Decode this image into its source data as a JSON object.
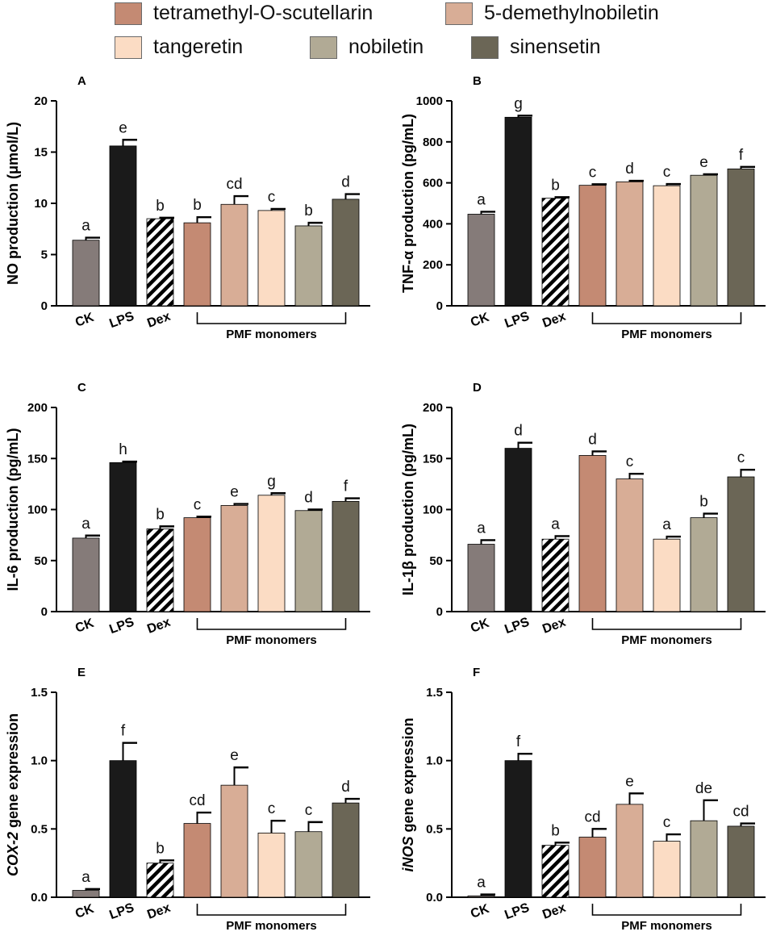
{
  "legend": [
    {
      "label": "tetramethyl-O-scutellarin",
      "color": "#c48a73"
    },
    {
      "label": "5-demethylnobiletin",
      "color": "#d8ad96"
    },
    {
      "label": "tangeretin",
      "color": "#fbdcc4"
    },
    {
      "label": "nobiletin",
      "color": "#b1aa95"
    },
    {
      "label": "sinensetin",
      "color": "#6b6656"
    }
  ],
  "colors": {
    "CK": "#857b79",
    "LPS": "#1a1a1a",
    "Dex": "hatch",
    "tetramethyl-O-scutellarin": "#c48a73",
    "5-demethylnobiletin": "#d8ad96",
    "tangeretin": "#fbdcc4",
    "nobiletin": "#b1aa95",
    "sinensetin": "#6b6656"
  },
  "chart_data": [
    {
      "panel": "A",
      "type": "bar",
      "categories": [
        "CK",
        "LPS",
        "Dex",
        "tetramethyl-O-scutellarin",
        "5-demethylnobiletin",
        "tangeretin",
        "nobiletin",
        "sinensetin"
      ],
      "tick_labels": [
        "CK",
        "LPS",
        "Dex"
      ],
      "group_label": "PMF monomers",
      "ylabel": "NO production (μmol/L)",
      "ylim": [
        0,
        20
      ],
      "yticks": [
        0,
        5,
        10,
        15,
        20
      ],
      "values": [
        6.4,
        15.6,
        8.5,
        8.1,
        9.9,
        9.3,
        7.8,
        10.4
      ],
      "errors": [
        0.25,
        0.6,
        0.1,
        0.55,
        0.8,
        0.15,
        0.3,
        0.5
      ],
      "letters": [
        "a",
        "e",
        "b",
        "b",
        "cd",
        "c",
        "b",
        "d"
      ]
    },
    {
      "panel": "B",
      "type": "bar",
      "categories": [
        "CK",
        "LPS",
        "Dex",
        "tetramethyl-O-scutellarin",
        "5-demethylnobiletin",
        "tangeretin",
        "nobiletin",
        "sinensetin"
      ],
      "tick_labels": [
        "CK",
        "LPS",
        "Dex"
      ],
      "group_label": "PMF monomers",
      "ylabel": "TNF-α production (pg/mL)",
      "ylim": [
        0,
        1000
      ],
      "yticks": [
        0,
        200,
        400,
        600,
        800,
        1000
      ],
      "values": [
        447,
        920,
        525,
        588,
        605,
        586,
        637,
        668
      ],
      "errors": [
        12,
        8,
        5,
        5,
        5,
        8,
        5,
        10
      ],
      "letters": [
        "a",
        "g",
        "b",
        "c",
        "d",
        "c",
        "e",
        "f"
      ]
    },
    {
      "panel": "C",
      "type": "bar",
      "categories": [
        "CK",
        "LPS",
        "Dex",
        "tetramethyl-O-scutellarin",
        "5-demethylnobiletin",
        "tangeretin",
        "nobiletin",
        "sinensetin"
      ],
      "tick_labels": [
        "CK",
        "LPS",
        "Dex"
      ],
      "group_label": "PMF monomers",
      "ylabel": "IL-6 production (pg/mL)",
      "ylim": [
        0,
        200
      ],
      "yticks": [
        0,
        50,
        100,
        150,
        200
      ],
      "values": [
        72,
        146,
        81,
        92,
        104,
        114,
        99,
        108
      ],
      "errors": [
        2.5,
        1,
        2.5,
        1,
        1.5,
        2,
        1,
        3
      ],
      "letters": [
        "a",
        "h",
        "b",
        "c",
        "e",
        "g",
        "d",
        "f"
      ]
    },
    {
      "panel": "D",
      "type": "bar",
      "categories": [
        "CK",
        "LPS",
        "Dex",
        "tetramethyl-O-scutellarin",
        "5-demethylnobiletin",
        "tangeretin",
        "nobiletin",
        "sinensetin"
      ],
      "tick_labels": [
        "CK",
        "LPS",
        "Dex"
      ],
      "group_label": "PMF monomers",
      "ylabel": "IL-1β production (pg/mL)",
      "ylim": [
        0,
        200
      ],
      "yticks": [
        0,
        50,
        100,
        150,
        200
      ],
      "values": [
        66,
        160,
        71,
        153,
        130,
        71,
        92,
        132
      ],
      "errors": [
        4,
        5.5,
        3,
        4,
        5,
        2.5,
        4,
        7
      ],
      "letters": [
        "a",
        "d",
        "a",
        "d",
        "c",
        "a",
        "b",
        "c"
      ]
    },
    {
      "panel": "E",
      "type": "bar",
      "categories": [
        "CK",
        "LPS",
        "Dex",
        "tetramethyl-O-scutellarin",
        "5-demethylnobiletin",
        "tangeretin",
        "nobiletin",
        "sinensetin"
      ],
      "tick_labels": [
        "CK",
        "LPS",
        "Dex"
      ],
      "group_label": "PMF monomers",
      "ylabel_italic": "COX-2",
      "ylabel_rest": " gene expression",
      "ylim": [
        0,
        1.5
      ],
      "yticks": [
        "0.0",
        "0.5",
        "1.0",
        "1.5"
      ],
      "values": [
        0.05,
        1.0,
        0.25,
        0.54,
        0.82,
        0.47,
        0.48,
        0.69
      ],
      "errors": [
        0.01,
        0.13,
        0.02,
        0.08,
        0.13,
        0.09,
        0.07,
        0.03
      ],
      "letters": [
        "a",
        "f",
        "b",
        "cd",
        "e",
        "c",
        "c",
        "d"
      ]
    },
    {
      "panel": "F",
      "type": "bar",
      "categories": [
        "CK",
        "LPS",
        "Dex",
        "tetramethyl-O-scutellarin",
        "5-demethylnobiletin",
        "tangeretin",
        "nobiletin",
        "sinensetin"
      ],
      "tick_labels": [
        "CK",
        "LPS",
        "Dex"
      ],
      "group_label": "PMF monomers",
      "ylabel_italic": "iNOS",
      "ylabel_rest": " gene expression",
      "ylim": [
        0,
        1.5
      ],
      "yticks": [
        "0.0",
        "0.5",
        "1.0",
        "1.5"
      ],
      "values": [
        0.01,
        1.0,
        0.38,
        0.44,
        0.68,
        0.41,
        0.56,
        0.52
      ],
      "errors": [
        0.01,
        0.05,
        0.02,
        0.06,
        0.08,
        0.05,
        0.15,
        0.02
      ],
      "letters": [
        "a",
        "f",
        "b",
        "cd",
        "e",
        "c",
        "de",
        "cd"
      ]
    }
  ]
}
